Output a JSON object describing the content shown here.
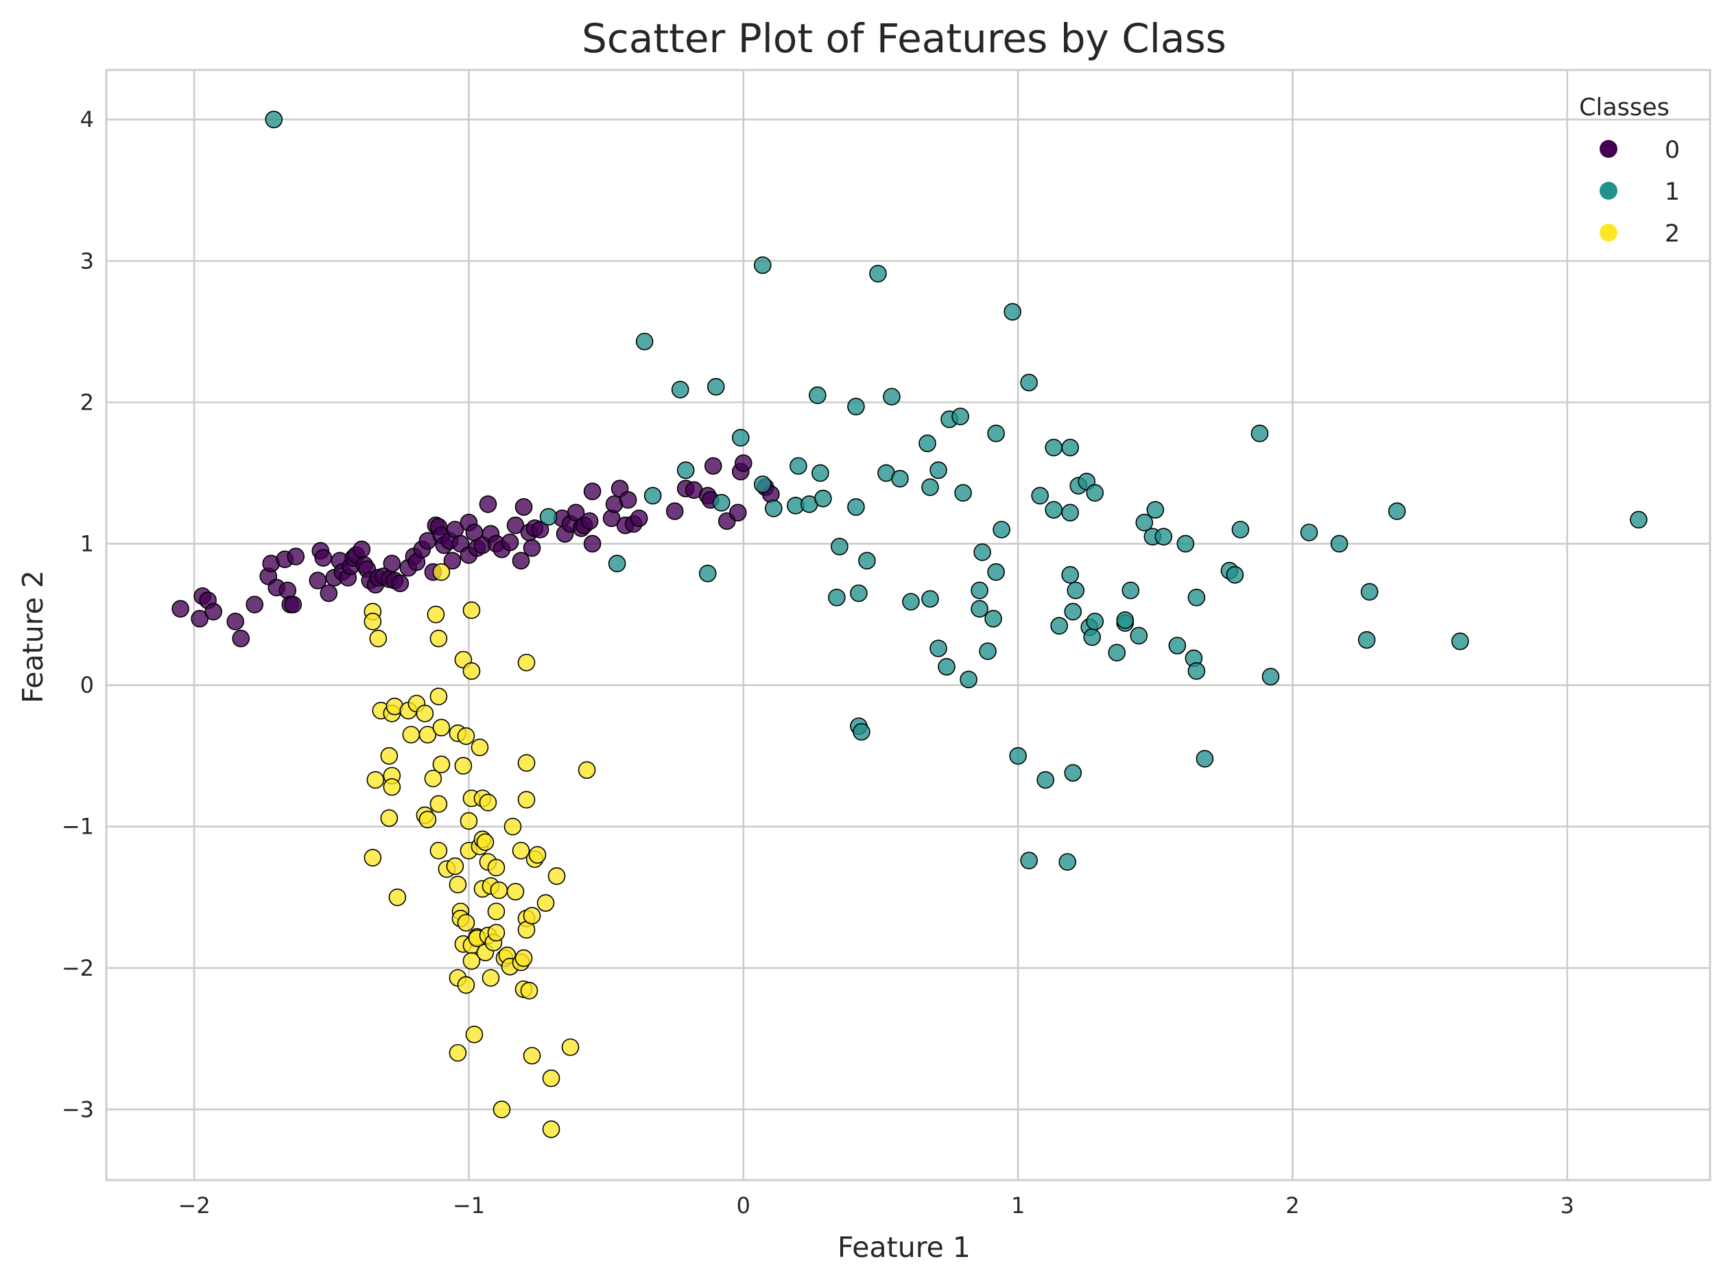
{
  "chart_data": {
    "type": "scatter",
    "title": "Scatter Plot of Features by Class",
    "xlabel": "Feature 1",
    "ylabel": "Feature 2",
    "xlim": [
      -2.32,
      3.52
    ],
    "ylim": [
      -3.5,
      4.35
    ],
    "x_ticks": [
      -2,
      -1,
      0,
      1,
      2,
      3
    ],
    "x_tick_labels": [
      "−2",
      "−1",
      "0",
      "1",
      "2",
      "3"
    ],
    "y_ticks": [
      -3,
      -2,
      -1,
      0,
      1,
      2,
      3,
      4
    ],
    "y_tick_labels": [
      "−3",
      "−2",
      "−1",
      "0",
      "1",
      "2",
      "3",
      "4"
    ],
    "grid": true,
    "legend": {
      "title": "Classes",
      "placement": "top-right"
    },
    "series": [
      {
        "name": "0",
        "color": "#440154",
        "points": [
          [
            -2.05,
            0.54
          ],
          [
            -1.98,
            0.47
          ],
          [
            -1.97,
            0.63
          ],
          [
            -1.95,
            0.6
          ],
          [
            -1.93,
            0.52
          ],
          [
            -1.85,
            0.45
          ],
          [
            -1.83,
            0.33
          ],
          [
            -1.78,
            0.57
          ],
          [
            -1.73,
            0.77
          ],
          [
            -1.72,
            0.86
          ],
          [
            -1.7,
            0.69
          ],
          [
            -1.67,
            0.89
          ],
          [
            -1.66,
            0.67
          ],
          [
            -1.65,
            0.57
          ],
          [
            -1.64,
            0.57
          ],
          [
            -1.63,
            0.91
          ],
          [
            -1.55,
            0.74
          ],
          [
            -1.54,
            0.95
          ],
          [
            -1.53,
            0.9
          ],
          [
            -1.51,
            0.65
          ],
          [
            -1.49,
            0.76
          ],
          [
            -1.47,
            0.88
          ],
          [
            -1.46,
            0.8
          ],
          [
            -1.44,
            0.76
          ],
          [
            -1.43,
            0.84
          ],
          [
            -1.42,
            0.9
          ],
          [
            -1.41,
            0.92
          ],
          [
            -1.39,
            0.96
          ],
          [
            -1.38,
            0.85
          ],
          [
            -1.37,
            0.82
          ],
          [
            -1.36,
            0.74
          ],
          [
            -1.34,
            0.71
          ],
          [
            -1.33,
            0.76
          ],
          [
            -1.31,
            0.77
          ],
          [
            -1.29,
            0.75
          ],
          [
            -1.28,
            0.86
          ],
          [
            -1.27,
            0.74
          ],
          [
            -1.25,
            0.72
          ],
          [
            -1.22,
            0.83
          ],
          [
            -1.2,
            0.91
          ],
          [
            -1.19,
            0.87
          ],
          [
            -1.17,
            0.96
          ],
          [
            -1.15,
            1.02
          ],
          [
            -1.13,
            0.8
          ],
          [
            -1.12,
            1.13
          ],
          [
            -1.11,
            1.12
          ],
          [
            -1.1,
            1.06
          ],
          [
            -1.09,
            0.99
          ],
          [
            -1.07,
            1.02
          ],
          [
            -1.06,
            0.88
          ],
          [
            -1.05,
            1.1
          ],
          [
            -1.03,
            1.0
          ],
          [
            -1.0,
            0.92
          ],
          [
            -1.0,
            1.15
          ],
          [
            -0.98,
            1.08
          ],
          [
            -0.97,
            0.97
          ],
          [
            -0.95,
            0.99
          ],
          [
            -0.93,
            1.28
          ],
          [
            -0.92,
            1.07
          ],
          [
            -0.9,
            1.0
          ],
          [
            -0.88,
            0.96
          ],
          [
            -0.85,
            1.01
          ],
          [
            -0.83,
            1.13
          ],
          [
            -0.81,
            0.88
          ],
          [
            -0.8,
            1.26
          ],
          [
            -0.78,
            1.08
          ],
          [
            -0.77,
            0.97
          ],
          [
            -0.76,
            1.11
          ],
          [
            -0.74,
            1.1
          ],
          [
            -0.66,
            1.18
          ],
          [
            -0.65,
            1.07
          ],
          [
            -0.63,
            1.14
          ],
          [
            -0.61,
            1.22
          ],
          [
            -0.59,
            1.11
          ],
          [
            -0.58,
            1.13
          ],
          [
            -0.56,
            1.16
          ],
          [
            -0.55,
            1.37
          ],
          [
            -0.55,
            1.0
          ],
          [
            -0.48,
            1.18
          ],
          [
            -0.47,
            1.28
          ],
          [
            -0.45,
            1.39
          ],
          [
            -0.43,
            1.13
          ],
          [
            -0.42,
            1.31
          ],
          [
            -0.4,
            1.14
          ],
          [
            -0.38,
            1.18
          ],
          [
            -0.25,
            1.23
          ],
          [
            -0.21,
            1.39
          ],
          [
            -0.18,
            1.38
          ],
          [
            -0.13,
            1.34
          ],
          [
            -0.12,
            1.31
          ],
          [
            -0.11,
            1.55
          ],
          [
            -0.06,
            1.16
          ],
          [
            -0.02,
            1.22
          ],
          [
            -0.01,
            1.51
          ],
          [
            0.0,
            1.57
          ],
          [
            0.08,
            1.4
          ],
          [
            0.1,
            1.35
          ]
        ]
      },
      {
        "name": "1",
        "color": "#21918c",
        "points": [
          [
            -1.71,
            4.0
          ],
          [
            -0.71,
            1.19
          ],
          [
            -0.46,
            0.86
          ],
          [
            -0.36,
            2.43
          ],
          [
            -0.33,
            1.34
          ],
          [
            -0.23,
            2.09
          ],
          [
            -0.21,
            1.52
          ],
          [
            -0.13,
            0.79
          ],
          [
            -0.1,
            2.11
          ],
          [
            -0.08,
            1.29
          ],
          [
            -0.01,
            1.75
          ],
          [
            0.07,
            2.97
          ],
          [
            0.07,
            1.42
          ],
          [
            0.11,
            1.25
          ],
          [
            0.19,
            1.27
          ],
          [
            0.2,
            1.55
          ],
          [
            0.24,
            1.28
          ],
          [
            0.27,
            2.05
          ],
          [
            0.28,
            1.5
          ],
          [
            0.29,
            1.32
          ],
          [
            0.34,
            0.62
          ],
          [
            0.35,
            0.98
          ],
          [
            0.41,
            1.97
          ],
          [
            0.41,
            1.26
          ],
          [
            0.42,
            0.65
          ],
          [
            0.42,
            -0.29
          ],
          [
            0.43,
            -0.33
          ],
          [
            0.45,
            0.88
          ],
          [
            0.49,
            2.91
          ],
          [
            0.52,
            1.5
          ],
          [
            0.54,
            2.04
          ],
          [
            0.57,
            1.46
          ],
          [
            0.61,
            0.59
          ],
          [
            0.67,
            1.71
          ],
          [
            0.68,
            1.4
          ],
          [
            0.68,
            0.61
          ],
          [
            0.71,
            1.52
          ],
          [
            0.71,
            0.26
          ],
          [
            0.75,
            1.88
          ],
          [
            0.74,
            0.13
          ],
          [
            0.79,
            1.9
          ],
          [
            0.8,
            1.36
          ],
          [
            0.82,
            0.04
          ],
          [
            0.86,
            0.67
          ],
          [
            0.86,
            0.54
          ],
          [
            0.87,
            0.94
          ],
          [
            0.89,
            0.24
          ],
          [
            0.91,
            0.47
          ],
          [
            0.92,
            1.78
          ],
          [
            0.92,
            0.8
          ],
          [
            0.94,
            1.1
          ],
          [
            0.98,
            2.64
          ],
          [
            1.0,
            -0.5
          ],
          [
            1.04,
            2.14
          ],
          [
            1.04,
            -1.24
          ],
          [
            1.08,
            1.34
          ],
          [
            1.1,
            -0.67
          ],
          [
            1.13,
            1.68
          ],
          [
            1.13,
            1.24
          ],
          [
            1.15,
            0.42
          ],
          [
            1.19,
            1.68
          ],
          [
            1.19,
            1.22
          ],
          [
            1.19,
            0.78
          ],
          [
            1.2,
            0.52
          ],
          [
            1.2,
            -0.62
          ],
          [
            1.21,
            0.67
          ],
          [
            1.18,
            -1.25
          ],
          [
            1.22,
            1.41
          ],
          [
            1.25,
            1.44
          ],
          [
            1.26,
            0.41
          ],
          [
            1.27,
            0.34
          ],
          [
            1.28,
            1.36
          ],
          [
            1.28,
            0.45
          ],
          [
            1.36,
            0.23
          ],
          [
            1.39,
            0.44
          ],
          [
            1.39,
            0.46
          ],
          [
            1.41,
            0.67
          ],
          [
            1.44,
            0.35
          ],
          [
            1.46,
            1.15
          ],
          [
            1.49,
            1.05
          ],
          [
            1.5,
            1.24
          ],
          [
            1.53,
            1.05
          ],
          [
            1.58,
            0.28
          ],
          [
            1.61,
            1.0
          ],
          [
            1.64,
            0.19
          ],
          [
            1.65,
            0.62
          ],
          [
            1.65,
            0.1
          ],
          [
            1.68,
            -0.52
          ],
          [
            1.77,
            0.81
          ],
          [
            1.79,
            0.78
          ],
          [
            1.81,
            1.1
          ],
          [
            1.88,
            1.78
          ],
          [
            1.92,
            0.06
          ],
          [
            2.06,
            1.08
          ],
          [
            2.17,
            1.0
          ],
          [
            2.27,
            0.32
          ],
          [
            2.28,
            0.66
          ],
          [
            2.38,
            1.23
          ],
          [
            2.61,
            0.31
          ],
          [
            3.26,
            1.17
          ]
        ]
      },
      {
        "name": "2",
        "color": "#fde725",
        "points": [
          [
            -1.35,
            0.52
          ],
          [
            -1.35,
            0.45
          ],
          [
            -1.33,
            0.33
          ],
          [
            -1.34,
            -0.67
          ],
          [
            -1.32,
            -0.18
          ],
          [
            -1.29,
            -0.5
          ],
          [
            -1.29,
            -0.94
          ],
          [
            -1.28,
            -0.64
          ],
          [
            -1.28,
            -0.72
          ],
          [
            -1.28,
            -0.2
          ],
          [
            -1.27,
            -0.15
          ],
          [
            -1.26,
            -1.5
          ],
          [
            -1.35,
            -1.22
          ],
          [
            -1.22,
            -0.18
          ],
          [
            -1.21,
            -0.35
          ],
          [
            -1.19,
            -0.13
          ],
          [
            -1.16,
            -0.2
          ],
          [
            -1.16,
            -0.92
          ],
          [
            -1.15,
            -0.95
          ],
          [
            -1.15,
            -0.35
          ],
          [
            -1.13,
            -0.66
          ],
          [
            -1.12,
            0.5
          ],
          [
            -1.11,
            0.33
          ],
          [
            -1.11,
            -0.08
          ],
          [
            -1.11,
            -0.84
          ],
          [
            -1.11,
            -1.17
          ],
          [
            -1.1,
            -0.3
          ],
          [
            -1.1,
            -0.56
          ],
          [
            -1.1,
            0.8
          ],
          [
            -1.08,
            -1.3
          ],
          [
            -1.05,
            -1.28
          ],
          [
            -1.04,
            -1.41
          ],
          [
            -1.04,
            -0.34
          ],
          [
            -1.04,
            -2.07
          ],
          [
            -1.04,
            -2.6
          ],
          [
            -1.03,
            -1.6
          ],
          [
            -1.03,
            -1.65
          ],
          [
            -1.02,
            -1.83
          ],
          [
            -1.02,
            -0.57
          ],
          [
            -1.02,
            0.18
          ],
          [
            -1.01,
            -0.36
          ],
          [
            -1.01,
            -1.68
          ],
          [
            -1.01,
            -2.12
          ],
          [
            -1.0,
            -0.96
          ],
          [
            -1.0,
            -1.17
          ],
          [
            -0.99,
            -1.84
          ],
          [
            -0.99,
            -1.95
          ],
          [
            -0.99,
            0.53
          ],
          [
            -0.99,
            0.1
          ],
          [
            -0.99,
            -0.8
          ],
          [
            -0.98,
            -2.47
          ],
          [
            -0.97,
            -1.78
          ],
          [
            -0.97,
            -1.79
          ],
          [
            -0.96,
            -1.14
          ],
          [
            -0.96,
            -0.44
          ],
          [
            -0.95,
            -0.8
          ],
          [
            -0.95,
            -1.44
          ],
          [
            -0.95,
            -1.09
          ],
          [
            -0.94,
            -1.11
          ],
          [
            -0.94,
            -1.89
          ],
          [
            -0.93,
            -0.83
          ],
          [
            -0.93,
            -1.77
          ],
          [
            -0.93,
            -1.25
          ],
          [
            -0.92,
            -2.07
          ],
          [
            -0.92,
            -1.42
          ],
          [
            -0.91,
            -1.82
          ],
          [
            -0.9,
            -1.6
          ],
          [
            -0.9,
            -1.29
          ],
          [
            -0.9,
            -1.75
          ],
          [
            -0.89,
            -1.45
          ],
          [
            -0.88,
            -3.0
          ],
          [
            -0.87,
            -1.93
          ],
          [
            -0.86,
            -1.91
          ],
          [
            -0.85,
            -1.99
          ],
          [
            -0.84,
            -1.0
          ],
          [
            -0.83,
            -1.46
          ],
          [
            -0.81,
            -1.17
          ],
          [
            -0.81,
            -1.96
          ],
          [
            -0.8,
            -2.15
          ],
          [
            -0.8,
            -1.93
          ],
          [
            -0.79,
            -0.55
          ],
          [
            -0.79,
            0.16
          ],
          [
            -0.79,
            -0.81
          ],
          [
            -0.79,
            -1.65
          ],
          [
            -0.79,
            -1.73
          ],
          [
            -0.78,
            -2.16
          ],
          [
            -0.77,
            -1.63
          ],
          [
            -0.77,
            -2.62
          ],
          [
            -0.76,
            -1.23
          ],
          [
            -0.75,
            -1.2
          ],
          [
            -0.72,
            -1.54
          ],
          [
            -0.7,
            -3.14
          ],
          [
            -0.7,
            -2.78
          ],
          [
            -0.68,
            -1.35
          ],
          [
            -0.63,
            -2.56
          ],
          [
            -0.57,
            -0.6
          ]
        ]
      }
    ]
  }
}
